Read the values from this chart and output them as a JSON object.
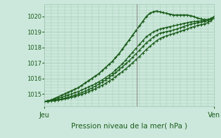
{
  "title": "",
  "xlabel": "Pression niveau de la mer( hPa )",
  "ylabel": "",
  "bg_color": "#cce8dc",
  "grid_color": "#a0c8b0",
  "line_color": "#1a5c1a",
  "xtick_labels": [
    "Jeu",
    "Ven"
  ],
  "xtick_pos": [
    0.0,
    1.0
  ],
  "ylim": [
    1014.2,
    1020.8
  ],
  "yticks": [
    1015,
    1016,
    1017,
    1018,
    1019,
    1020
  ],
  "vline_x": 0.545,
  "series_x": [
    [
      0.0,
      0.02,
      0.04,
      0.06,
      0.08,
      0.1,
      0.12,
      0.14,
      0.16,
      0.18,
      0.2,
      0.22,
      0.24,
      0.26,
      0.28,
      0.3,
      0.32,
      0.34,
      0.36,
      0.38,
      0.4,
      0.42,
      0.44,
      0.46,
      0.48,
      0.5,
      0.52,
      0.54,
      0.56,
      0.58,
      0.6,
      0.62,
      0.64,
      0.66,
      0.68,
      0.7,
      0.72,
      0.74,
      0.76,
      0.78,
      0.8,
      0.82,
      0.84,
      0.86,
      0.88,
      0.9,
      0.92,
      0.94,
      0.96,
      0.98,
      1.0
    ],
    [
      0.0,
      0.02,
      0.04,
      0.06,
      0.08,
      0.1,
      0.12,
      0.14,
      0.16,
      0.18,
      0.2,
      0.22,
      0.24,
      0.26,
      0.28,
      0.3,
      0.32,
      0.34,
      0.36,
      0.38,
      0.4,
      0.42,
      0.44,
      0.46,
      0.48,
      0.5,
      0.52,
      0.54,
      0.56,
      0.58,
      0.6,
      0.62,
      0.64,
      0.66,
      0.68,
      0.7,
      0.72,
      0.74,
      0.76,
      0.78,
      0.8,
      0.82,
      0.84,
      0.86,
      0.88,
      0.9,
      0.92,
      0.94,
      0.96,
      0.98,
      1.0
    ],
    [
      0.0,
      0.02,
      0.04,
      0.06,
      0.08,
      0.1,
      0.12,
      0.14,
      0.16,
      0.18,
      0.2,
      0.22,
      0.24,
      0.26,
      0.28,
      0.3,
      0.32,
      0.34,
      0.36,
      0.38,
      0.4,
      0.42,
      0.44,
      0.46,
      0.48,
      0.5,
      0.52,
      0.54,
      0.56,
      0.58,
      0.6,
      0.62,
      0.64,
      0.66,
      0.68,
      0.7,
      0.72,
      0.74,
      0.76,
      0.78,
      0.8,
      0.82,
      0.84,
      0.86,
      0.88,
      0.9,
      0.92,
      0.94,
      0.96,
      0.98,
      1.0
    ],
    [
      0.0,
      0.02,
      0.04,
      0.06,
      0.08,
      0.1,
      0.12,
      0.14,
      0.16,
      0.18,
      0.2,
      0.22,
      0.24,
      0.26,
      0.28,
      0.3,
      0.32,
      0.34,
      0.36,
      0.38,
      0.4,
      0.42,
      0.44,
      0.46,
      0.48,
      0.5,
      0.52,
      0.54,
      0.56,
      0.58,
      0.6,
      0.62,
      0.64,
      0.66,
      0.68,
      0.7,
      0.72,
      0.74,
      0.76,
      0.78,
      0.8,
      0.82,
      0.84,
      0.86,
      0.88,
      0.9,
      0.92,
      0.94,
      0.96,
      0.98,
      1.0
    ]
  ],
  "series_y": [
    [
      1014.5,
      1014.55,
      1014.6,
      1014.7,
      1014.8,
      1014.9,
      1015.0,
      1015.1,
      1015.2,
      1015.3,
      1015.4,
      1015.55,
      1015.7,
      1015.85,
      1016.0,
      1016.15,
      1016.3,
      1016.5,
      1016.7,
      1016.9,
      1017.1,
      1017.35,
      1017.6,
      1017.9,
      1018.2,
      1018.5,
      1018.8,
      1019.1,
      1019.4,
      1019.7,
      1020.0,
      1020.2,
      1020.3,
      1020.35,
      1020.3,
      1020.25,
      1020.2,
      1020.15,
      1020.1,
      1020.1,
      1020.1,
      1020.1,
      1020.1,
      1020.05,
      1020.0,
      1019.9,
      1019.85,
      1019.8,
      1019.8,
      1019.85,
      1020.0
    ],
    [
      1014.5,
      1014.55,
      1014.6,
      1014.65,
      1014.7,
      1014.78,
      1014.85,
      1014.93,
      1015.0,
      1015.08,
      1015.15,
      1015.25,
      1015.35,
      1015.45,
      1015.55,
      1015.65,
      1015.78,
      1015.9,
      1016.05,
      1016.2,
      1016.35,
      1016.55,
      1016.75,
      1016.95,
      1017.2,
      1017.45,
      1017.7,
      1017.95,
      1018.2,
      1018.45,
      1018.7,
      1018.85,
      1019.0,
      1019.1,
      1019.2,
      1019.25,
      1019.3,
      1019.35,
      1019.4,
      1019.45,
      1019.5,
      1019.55,
      1019.6,
      1019.65,
      1019.68,
      1019.7,
      1019.72,
      1019.75,
      1019.8,
      1019.88,
      1020.0
    ],
    [
      1014.5,
      1014.52,
      1014.55,
      1014.58,
      1014.62,
      1014.67,
      1014.72,
      1014.78,
      1014.85,
      1014.92,
      1015.0,
      1015.08,
      1015.18,
      1015.28,
      1015.38,
      1015.5,
      1015.62,
      1015.75,
      1015.9,
      1016.05,
      1016.2,
      1016.38,
      1016.56,
      1016.75,
      1016.95,
      1017.15,
      1017.38,
      1017.6,
      1017.83,
      1018.06,
      1018.3,
      1018.48,
      1018.66,
      1018.8,
      1018.92,
      1018.98,
      1019.03,
      1019.08,
      1019.13,
      1019.2,
      1019.27,
      1019.35,
      1019.43,
      1019.5,
      1019.55,
      1019.6,
      1019.63,
      1019.67,
      1019.73,
      1019.83,
      1020.0
    ],
    [
      1014.5,
      1014.52,
      1014.54,
      1014.56,
      1014.59,
      1014.63,
      1014.67,
      1014.72,
      1014.77,
      1014.83,
      1014.9,
      1014.97,
      1015.05,
      1015.14,
      1015.23,
      1015.33,
      1015.44,
      1015.56,
      1015.68,
      1015.82,
      1015.96,
      1016.12,
      1016.28,
      1016.45,
      1016.63,
      1016.82,
      1017.02,
      1017.22,
      1017.43,
      1017.65,
      1017.87,
      1018.07,
      1018.26,
      1018.43,
      1018.58,
      1018.68,
      1018.76,
      1018.83,
      1018.9,
      1018.97,
      1019.04,
      1019.12,
      1019.2,
      1019.28,
      1019.35,
      1019.42,
      1019.47,
      1019.52,
      1019.6,
      1019.73,
      1019.9
    ]
  ]
}
